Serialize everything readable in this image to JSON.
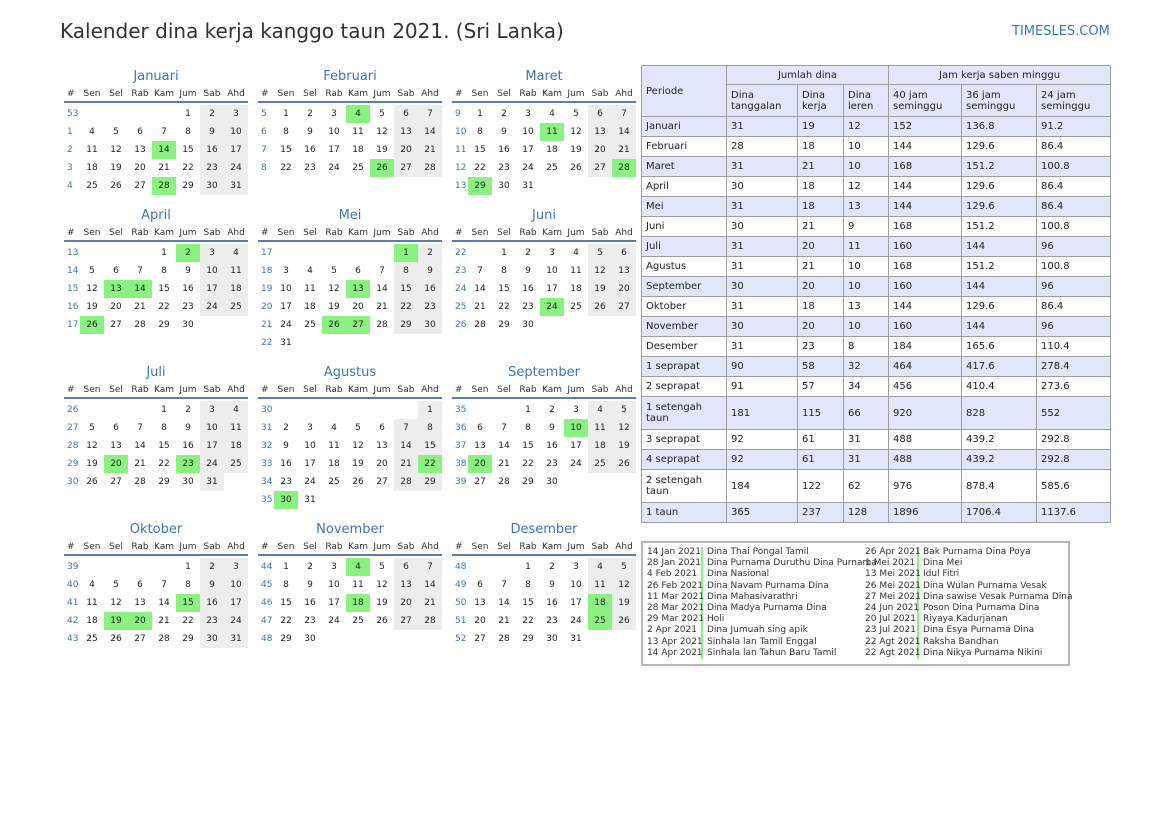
{
  "title": "Kalender dina kerja kanggo taun 2021. (Sri Lanka)",
  "brand": "TIMESLES.COM",
  "colors": {
    "accent": "#3a78b5",
    "holiday": "#8af27e",
    "weekend": "#ededed",
    "header_bg": "#e1e6fb"
  },
  "week_header": [
    "#",
    "Sen",
    "Sel",
    "Rab",
    "Kam",
    "Jum",
    "Sab",
    "Ahd"
  ],
  "months": [
    {
      "name": "Januari",
      "start": 4,
      "days": 31,
      "week": 53,
      "holidays": [
        14,
        28
      ]
    },
    {
      "name": "Februari",
      "start": 0,
      "days": 28,
      "week": 5,
      "holidays": [
        4,
        26
      ]
    },
    {
      "name": "Maret",
      "start": 0,
      "days": 31,
      "week": 9,
      "holidays": [
        11,
        28,
        29
      ]
    },
    {
      "name": "April",
      "start": 3,
      "days": 30,
      "week": 13,
      "holidays": [
        2,
        13,
        14,
        26
      ]
    },
    {
      "name": "Mei",
      "start": 5,
      "days": 31,
      "week": 17,
      "holidays": [
        1,
        13,
        26,
        27
      ]
    },
    {
      "name": "Juni",
      "start": 1,
      "days": 30,
      "week": 22,
      "holidays": [
        24
      ]
    },
    {
      "name": "Juli",
      "start": 3,
      "days": 31,
      "week": 26,
      "holidays": [
        20,
        23
      ]
    },
    {
      "name": "Agustus",
      "start": 6,
      "days": 31,
      "week": 30,
      "holidays": [
        22,
        30
      ]
    },
    {
      "name": "September",
      "start": 2,
      "days": 30,
      "week": 35,
      "holidays": [
        10,
        20
      ]
    },
    {
      "name": "Oktober",
      "start": 4,
      "days": 31,
      "week": 39,
      "holidays": [
        15,
        19,
        20
      ]
    },
    {
      "name": "November",
      "start": 0,
      "days": 30,
      "week": 44,
      "holidays": [
        4,
        18
      ]
    },
    {
      "name": "Desember",
      "start": 2,
      "days": 31,
      "week": 48,
      "holidays": [
        18,
        25
      ]
    }
  ],
  "stats": {
    "col_periode": "Periode",
    "grp_jumlah": "Jumlah dina",
    "grp_jam": "Jam kerja saben minggu",
    "sub": [
      "Dina tanggalan",
      "Dina kerja",
      "Dina leren",
      "40 jam seminggu",
      "36 jam seminggu",
      "24 jam seminggu"
    ],
    "rows": [
      [
        "Januari",
        "31",
        "19",
        "12",
        "152",
        "136.8",
        "91.2"
      ],
      [
        "Februari",
        "28",
        "18",
        "10",
        "144",
        "129.6",
        "86.4"
      ],
      [
        "Maret",
        "31",
        "21",
        "10",
        "168",
        "151.2",
        "100.8"
      ],
      [
        "April",
        "30",
        "18",
        "12",
        "144",
        "129.6",
        "86.4"
      ],
      [
        "Mei",
        "31",
        "18",
        "13",
        "144",
        "129.6",
        "86.4"
      ],
      [
        "Juni",
        "30",
        "21",
        "9",
        "168",
        "151.2",
        "100.8"
      ],
      [
        "Juli",
        "31",
        "20",
        "11",
        "160",
        "144",
        "96"
      ],
      [
        "Agustus",
        "31",
        "21",
        "10",
        "168",
        "151.2",
        "100.8"
      ],
      [
        "September",
        "30",
        "20",
        "10",
        "160",
        "144",
        "96"
      ],
      [
        "Oktober",
        "31",
        "18",
        "13",
        "144",
        "129.6",
        "86.4"
      ],
      [
        "November",
        "30",
        "20",
        "10",
        "160",
        "144",
        "96"
      ],
      [
        "Desember",
        "31",
        "23",
        "8",
        "184",
        "165.6",
        "110.4"
      ],
      [
        "1 seprapat",
        "90",
        "58",
        "32",
        "464",
        "417.6",
        "278.4"
      ],
      [
        "2 seprapat",
        "91",
        "57",
        "34",
        "456",
        "410.4",
        "273.6"
      ],
      [
        "1 setengah taun",
        "181",
        "115",
        "66",
        "920",
        "828",
        "552"
      ],
      [
        "3 seprapat",
        "92",
        "61",
        "31",
        "488",
        "439.2",
        "292.8"
      ],
      [
        "4 seprapat",
        "92",
        "61",
        "31",
        "488",
        "439.2",
        "292.8"
      ],
      [
        "2 setengah taun",
        "184",
        "122",
        "62",
        "976",
        "878.4",
        "585.6"
      ],
      [
        "1 taun",
        "365",
        "237",
        "128",
        "1896",
        "1706.4",
        "1137.6"
      ]
    ]
  },
  "holidays_left": [
    {
      "date": "14 Jan 2021",
      "name": "Dina Thai Pongal Tamil"
    },
    {
      "date": "28 Jan 2021",
      "name": "Dina Purnama Duruthu Dina Purnama"
    },
    {
      "date": "4 Feb 2021",
      "name": "Dina Nasional"
    },
    {
      "date": "26 Feb 2021",
      "name": "Dina Navam Purnama Dina"
    },
    {
      "date": "11 Mar 2021",
      "name": "Dina Mahasivarathri"
    },
    {
      "date": "28 Mar 2021",
      "name": "Dina Madya Purnama Dina"
    },
    {
      "date": "29 Mar 2021",
      "name": "Holi"
    },
    {
      "date": "2 Apr 2021",
      "name": "Dina Jumuah sing apik"
    },
    {
      "date": "13 Apr 2021",
      "name": "Sinhala lan Tamil Enggal"
    },
    {
      "date": "14 Apr 2021",
      "name": "Sinhala lan Tahun Baru Tamil"
    }
  ],
  "holidays_right": [
    {
      "date": "26 Apr 2021",
      "name": "Bak Purnama Dina Poya"
    },
    {
      "date": "1 Mei 2021",
      "name": "Dina Mei"
    },
    {
      "date": "13 Mei 2021",
      "name": "Idul Fitri"
    },
    {
      "date": "26 Mei 2021",
      "name": "Dina Wulan Purnama Vesak"
    },
    {
      "date": "27 Mei 2021",
      "name": "Dina sawise Vesak Purnama Dina"
    },
    {
      "date": "24 Jun 2021",
      "name": "Poson Dina Purnama Dina"
    },
    {
      "date": "20 Jul 2021",
      "name": "Riyaya Kadurjanan"
    },
    {
      "date": "23 Jul 2021",
      "name": "Dina Esya Purnama Dina"
    },
    {
      "date": "22 Agt 2021",
      "name": "Raksha Bandhan"
    },
    {
      "date": "22 Agt 2021",
      "name": "Dina Nikya Purnama Nikini"
    }
  ]
}
